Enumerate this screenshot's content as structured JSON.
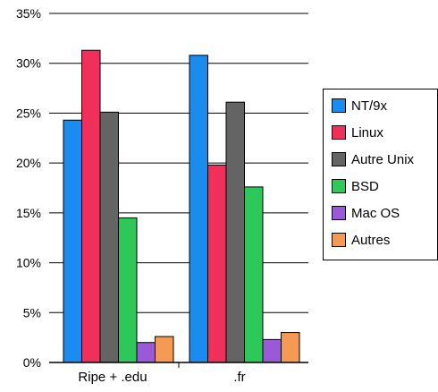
{
  "chart_data": {
    "type": "bar",
    "categories": [
      "Ripe + .edu",
      ".fr"
    ],
    "series": [
      {
        "name": "NT/9x",
        "values": [
          24.3,
          30.8
        ],
        "color": "#1a8cf0"
      },
      {
        "name": "Linux",
        "values": [
          31.3,
          19.8
        ],
        "color": "#f0305a"
      },
      {
        "name": "Autre Unix",
        "values": [
          25.1,
          26.1
        ],
        "color": "#646464"
      },
      {
        "name": "BSD",
        "values": [
          14.5,
          17.6
        ],
        "color": "#2ec85a"
      },
      {
        "name": "Mac OS",
        "values": [
          2.0,
          2.3
        ],
        "color": "#9a5ad8"
      },
      {
        "name": "Autres",
        "values": [
          2.6,
          3.0
        ],
        "color": "#f59a55"
      }
    ],
    "ylim": [
      0,
      35
    ],
    "yticks": [
      "0%",
      "5%",
      "10%",
      "15%",
      "20%",
      "25%",
      "30%",
      "35%"
    ],
    "grid": true,
    "legend_position": "right"
  }
}
